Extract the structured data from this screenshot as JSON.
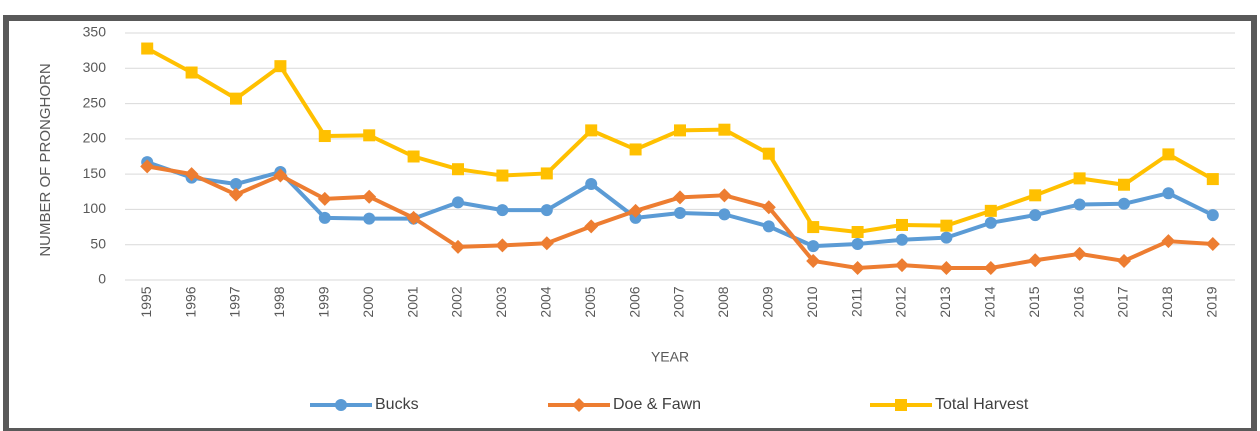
{
  "chart_data": {
    "type": "line",
    "categories": [
      "1995",
      "1996",
      "1997",
      "1998",
      "1999",
      "2000",
      "2001",
      "2002",
      "2003",
      "2004",
      "2005",
      "2006",
      "2007",
      "2008",
      "2009",
      "2010",
      "2011",
      "2012",
      "2013",
      "2014",
      "2015",
      "2016",
      "2017",
      "2018",
      "2019"
    ],
    "series": [
      {
        "name": "Bucks",
        "color": "#5b9bd5",
        "marker": "circle",
        "values": [
          167,
          145,
          136,
          153,
          88,
          87,
          87,
          110,
          99,
          99,
          136,
          88,
          95,
          93,
          76,
          48,
          51,
          57,
          60,
          81,
          92,
          107,
          108,
          123,
          92
        ]
      },
      {
        "name": "Doe & Fawn",
        "color": "#ed7d31",
        "marker": "diamond",
        "values": [
          161,
          150,
          121,
          148,
          115,
          118,
          88,
          47,
          49,
          52,
          76,
          98,
          117,
          120,
          103,
          27,
          17,
          21,
          17,
          17,
          28,
          37,
          27,
          55,
          51
        ]
      },
      {
        "name": "Total Harvest",
        "color": "#ffc000",
        "marker": "square",
        "values": [
          328,
          294,
          257,
          303,
          204,
          205,
          175,
          157,
          148,
          151,
          212,
          185,
          212,
          213,
          179,
          75,
          68,
          78,
          77,
          98,
          120,
          144,
          135,
          178,
          143
        ]
      }
    ],
    "x_label": "YEAR",
    "y_label": "NUMBER OF PRONGHORN",
    "ylim": [
      0,
      350
    ],
    "yticks": [
      0,
      50,
      100,
      150,
      200,
      250,
      300,
      350
    ],
    "grid": true,
    "legend": "bottom"
  }
}
